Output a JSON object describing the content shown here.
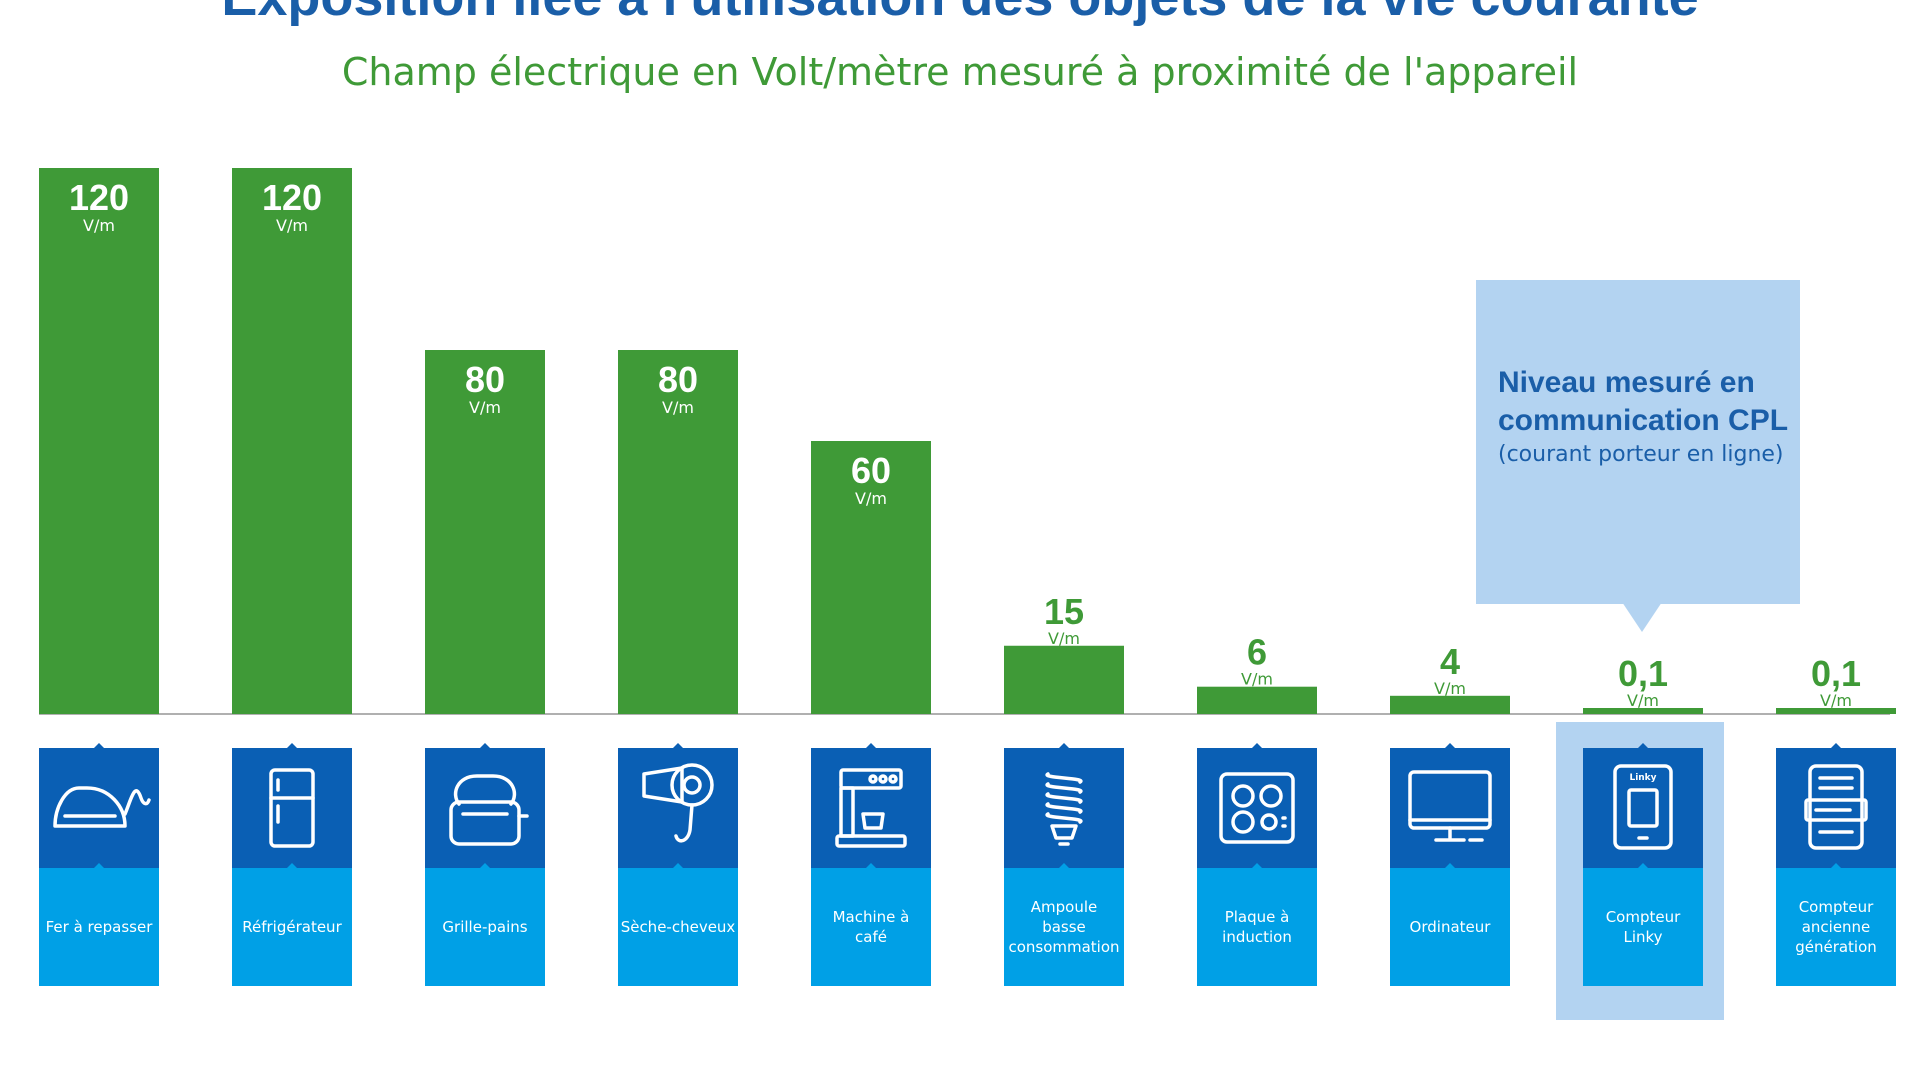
{
  "header": {
    "title": "Exposition liée à l'utilisation des objets de la vie courante",
    "subtitle": "Champ électrique en Volt/mètre mesuré à proximité de l'appareil"
  },
  "callout": {
    "title": "Niveau mesuré en communication CPL",
    "subtitle": "(courant porteur en ligne)"
  },
  "colors": {
    "bar": "#3f9a37",
    "value_on_bar": "#ffffff",
    "value_above_bar": "#3f9a37",
    "icon_tile": "#0a5fb4",
    "label_tile": "#00a0e6",
    "highlight": "#b3d3f1",
    "baseline": "#b0b0b0"
  },
  "chart_data": {
    "type": "bar",
    "title": "Exposition liée à l'utilisation des objets de la vie courante",
    "subtitle": "Champ électrique en Volt/mètre mesuré à proximité de l'appareil",
    "unit": "V/m",
    "categories": [
      "Fer à repasser",
      "Réfrigérateur",
      "Grille-pains",
      "Sèche-cheveux",
      "Machine à café",
      "Ampoule basse consommation",
      "Plaque à induction",
      "Ordinateur",
      "Compteur Linky",
      "Compteur ancienne génération"
    ],
    "category_lines": [
      [
        "Fer à repasser"
      ],
      [
        "Réfrigérateur"
      ],
      [
        "Grille-pains"
      ],
      [
        "Sèche-cheveux"
      ],
      [
        "Machine à",
        "café"
      ],
      [
        "Ampoule",
        "basse",
        "consommation"
      ],
      [
        "Plaque à",
        "induction"
      ],
      [
        "Ordinateur"
      ],
      [
        "Compteur",
        "Linky"
      ],
      [
        "Compteur",
        "ancienne",
        "génération"
      ]
    ],
    "values": [
      120,
      120,
      80,
      80,
      60,
      15,
      6,
      4,
      0.1,
      0.1
    ],
    "value_labels": [
      "120",
      "120",
      "80",
      "80",
      "60",
      "15",
      "6",
      "4",
      "0,1",
      "0,1"
    ],
    "icons": [
      "iron-icon",
      "fridge-icon",
      "toaster-icon",
      "hairdryer-icon",
      "coffee-machine-icon",
      "bulb-icon",
      "induction-hob-icon",
      "computer-icon",
      "linky-meter-icon",
      "old-meter-icon"
    ],
    "linky_brand": "Linky",
    "highlight_index": 8,
    "grid": false,
    "legend": "none"
  }
}
